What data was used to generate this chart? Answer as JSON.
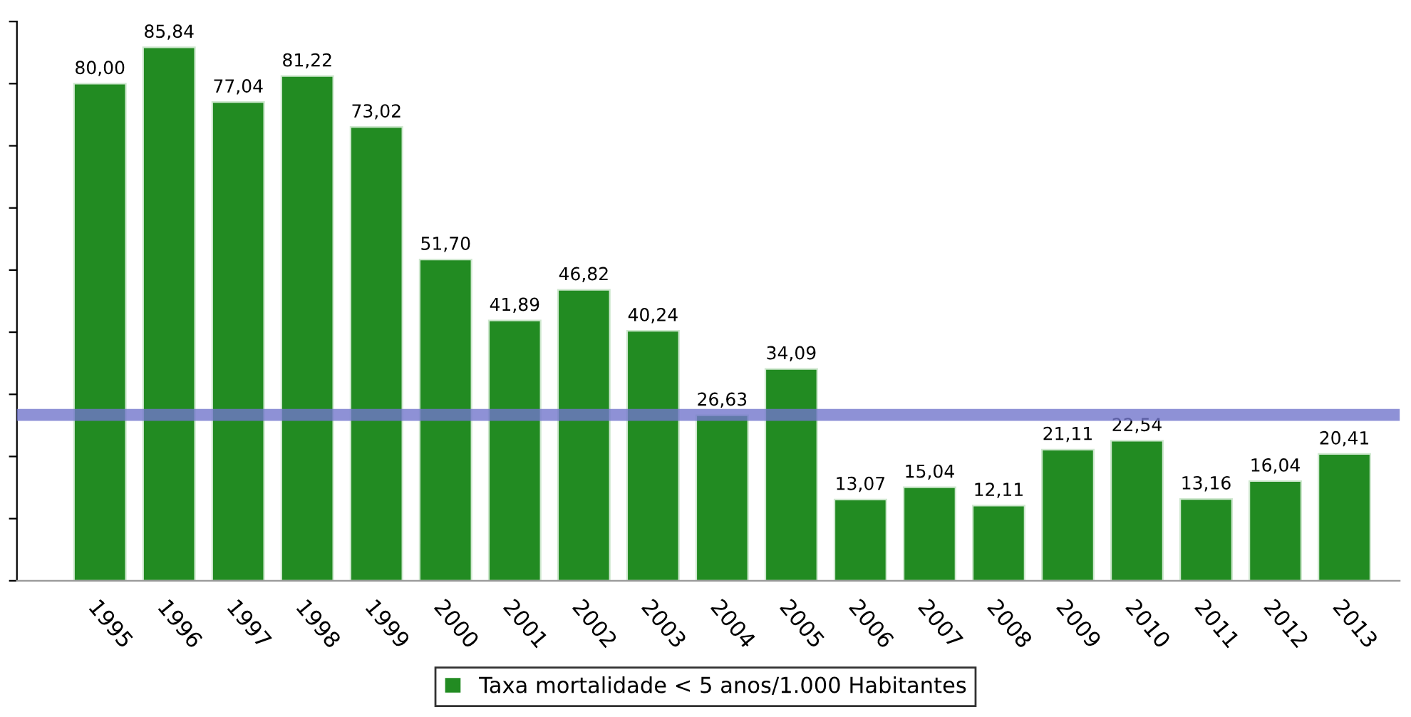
{
  "chart_data": {
    "type": "bar",
    "categories": [
      "1995",
      "1996",
      "1997",
      "1998",
      "1999",
      "2000",
      "2001",
      "2002",
      "2003",
      "2004",
      "2005",
      "2006",
      "2007",
      "2008",
      "2009",
      "2010",
      "2011",
      "2012",
      "2013"
    ],
    "series": [
      {
        "name": "Taxa mortalidade < 5 anos/1.000 Habitantes",
        "color": "#228b22",
        "values": [
          80.0,
          85.84,
          77.04,
          81.22,
          73.02,
          51.7,
          41.89,
          46.82,
          40.24,
          26.63,
          34.09,
          13.07,
          15.04,
          12.11,
          21.11,
          22.54,
          13.16,
          16.04,
          20.41
        ],
        "value_labels": [
          "80,00",
          "85,84",
          "77,04",
          "81,22",
          "73,02",
          "51,70",
          "41,89",
          "46,82",
          "40,24",
          "26,63",
          "34,09",
          "13,07",
          "15,04",
          "12,11",
          "21,11",
          "22,54",
          "13,16",
          "16,04",
          "20,41"
        ]
      }
    ],
    "ylim": [
      0,
      90
    ],
    "yticks": [
      {
        "value": 0,
        "label": null
      },
      {
        "value": 10,
        "label": null
      },
      {
        "value": 20,
        "label": null
      },
      {
        "value": 30,
        "label": null
      },
      {
        "value": 40,
        "label": null
      },
      {
        "value": 50,
        "label": null
      },
      {
        "value": 60,
        "label": null
      },
      {
        "value": 70,
        "label": null
      },
      {
        "value": 80,
        "label": null
      },
      {
        "value": 90,
        "label": null
      }
    ],
    "tick_labels": "x",
    "ref_lines": [
      {
        "axis": "y",
        "value": 26.7,
        "color": "#7276cc"
      }
    ],
    "grid": false,
    "legend": "bottom"
  }
}
